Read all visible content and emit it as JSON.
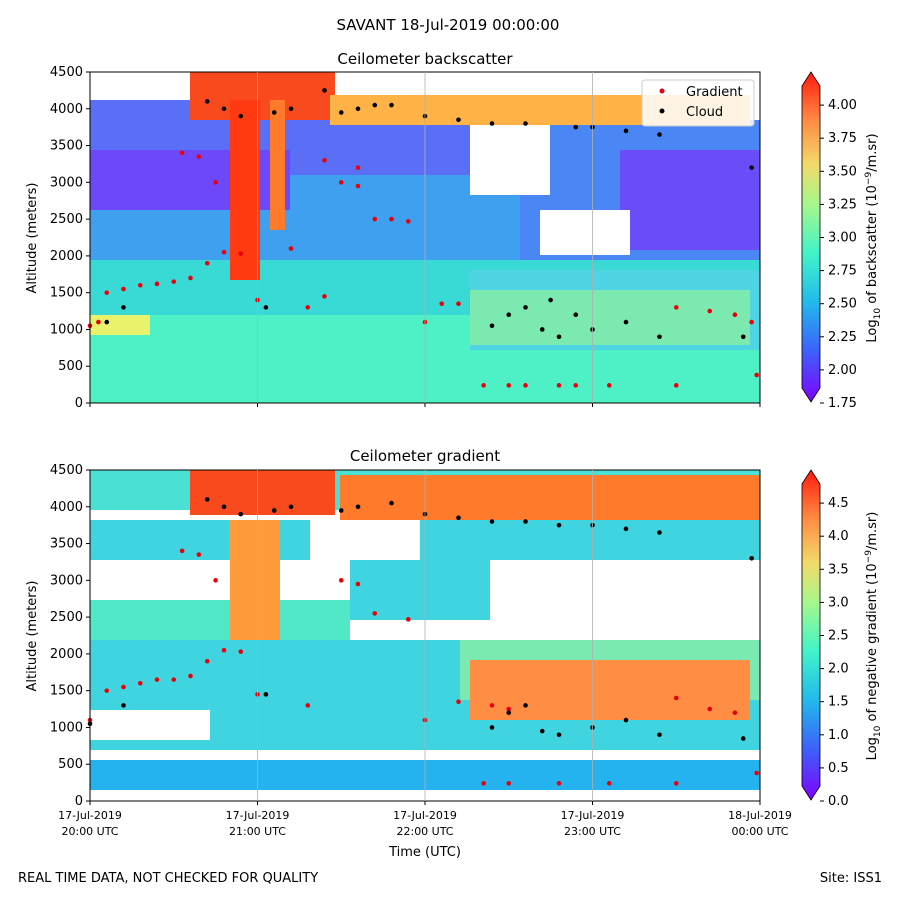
{
  "suptitle": "SAVANT 18-Jul-2019 00:00:00",
  "footer_left": "REAL TIME DATA, NOT CHECKED FOR QUALITY",
  "footer_right": "Site: ISS1",
  "chart_data": [
    {
      "type": "heatmap",
      "title": "Ceilometer backscatter",
      "ylabel": "Altitude (meters)",
      "xlabel": "",
      "xlim": [
        "17-Jul-2019 20:00 UTC",
        "18-Jul-2019 00:00 UTC"
      ],
      "ylim": [
        0,
        4500
      ],
      "yticks": [
        0,
        500,
        1000,
        1500,
        2000,
        2500,
        3000,
        3500,
        4000,
        4500
      ],
      "colorbar": {
        "label_main": "Log",
        "label_sub": "10",
        "label_rest": " of backscatter (10",
        "label_exp": "−9",
        "label_end": "/m.sr)",
        "ticks": [
          "1.75",
          "2.00",
          "2.25",
          "2.50",
          "2.75",
          "3.00",
          "3.25",
          "3.50",
          "3.75",
          "4.00"
        ],
        "range": [
          1.75,
          4.25
        ],
        "colormap": "rainbow"
      },
      "legend": {
        "placement": "top-right",
        "entries": [
          "Gradient",
          "Cloud"
        ]
      },
      "series": [
        {
          "name": "Gradient",
          "color": "#e8000b",
          "marker": "dot",
          "points": [
            [
              20.0,
              1050
            ],
            [
              20.05,
              1100
            ],
            [
              20.1,
              1500
            ],
            [
              20.2,
              1550
            ],
            [
              20.3,
              1600
            ],
            [
              20.4,
              1620
            ],
            [
              20.5,
              1650
            ],
            [
              20.6,
              1700
            ],
            [
              20.7,
              1900
            ],
            [
              20.8,
              2050
            ],
            [
              20.9,
              2030
            ],
            [
              20.55,
              3400
            ],
            [
              20.65,
              3350
            ],
            [
              20.75,
              3000
            ],
            [
              21.0,
              1400
            ],
            [
              21.2,
              2100
            ],
            [
              21.3,
              1300
            ],
            [
              21.4,
              1450
            ],
            [
              21.5,
              3000
            ],
            [
              21.6,
              2950
            ],
            [
              21.7,
              2500
            ],
            [
              21.8,
              2500
            ],
            [
              21.9,
              2470
            ],
            [
              21.4,
              3300
            ],
            [
              21.6,
              3200
            ],
            [
              22.0,
              1100
            ],
            [
              22.1,
              1350
            ],
            [
              22.2,
              1350
            ],
            [
              22.35,
              240
            ],
            [
              22.5,
              240
            ],
            [
              22.6,
              240
            ],
            [
              22.8,
              240
            ],
            [
              22.9,
              240
            ],
            [
              23.1,
              240
            ],
            [
              23.5,
              240
            ],
            [
              23.5,
              1300
            ],
            [
              23.7,
              1250
            ],
            [
              23.85,
              1200
            ],
            [
              23.95,
              1100
            ],
            [
              23.98,
              380
            ]
          ]
        },
        {
          "name": "Cloud",
          "color": "#000000",
          "marker": "dot",
          "points": [
            [
              20.1,
              1100
            ],
            [
              20.2,
              1300
            ],
            [
              20.7,
              4100
            ],
            [
              20.8,
              4000
            ],
            [
              20.9,
              3900
            ],
            [
              21.05,
              1300
            ],
            [
              21.1,
              3950
            ],
            [
              21.2,
              4000
            ],
            [
              21.4,
              4250
            ],
            [
              21.5,
              3950
            ],
            [
              21.6,
              4000
            ],
            [
              21.7,
              4050
            ],
            [
              21.8,
              4050
            ],
            [
              22.0,
              3900
            ],
            [
              22.2,
              3850
            ],
            [
              22.4,
              3800
            ],
            [
              22.6,
              3800
            ],
            [
              22.75,
              1400
            ],
            [
              22.9,
              3750
            ],
            [
              23.0,
              3750
            ],
            [
              23.2,
              3700
            ],
            [
              23.4,
              3650
            ],
            [
              22.4,
              1050
            ],
            [
              22.5,
              1200
            ],
            [
              22.6,
              1300
            ],
            [
              22.7,
              1000
            ],
            [
              22.8,
              900
            ],
            [
              22.9,
              1200
            ],
            [
              23.0,
              1000
            ],
            [
              23.2,
              1100
            ],
            [
              23.4,
              900
            ],
            [
              23.9,
              900
            ],
            [
              23.95,
              3200
            ]
          ]
        }
      ]
    },
    {
      "type": "heatmap",
      "title": "Ceilometer gradient",
      "ylabel": "Altitude (meters)",
      "xlabel": "Time (UTC)",
      "xlim": [
        "17-Jul-2019 20:00 UTC",
        "18-Jul-2019 00:00 UTC"
      ],
      "ylim": [
        0,
        4500
      ],
      "yticks": [
        0,
        500,
        1000,
        1500,
        2000,
        2500,
        3000,
        3500,
        4000,
        4500
      ],
      "xticks": [
        {
          "date": "17-Jul-2019",
          "time": "20:00 UTC"
        },
        {
          "date": "17-Jul-2019",
          "time": "21:00 UTC"
        },
        {
          "date": "17-Jul-2019",
          "time": "22:00 UTC"
        },
        {
          "date": "17-Jul-2019",
          "time": "23:00 UTC"
        },
        {
          "date": "18-Jul-2019",
          "time": "00:00 UTC"
        }
      ],
      "colorbar": {
        "label_main": "Log",
        "label_sub": "10",
        "label_rest": " of negative gradient (10",
        "label_exp": "−9",
        "label_end": "/m.sr)",
        "ticks": [
          "0.0",
          "0.5",
          "1.0",
          "1.5",
          "2.0",
          "2.5",
          "3.0",
          "3.5",
          "4.0",
          "4.5"
        ],
        "range": [
          0,
          5
        ],
        "colormap": "rainbow"
      },
      "series": [
        {
          "name": "Gradient",
          "color": "#e8000b",
          "marker": "dot",
          "points": [
            [
              20.0,
              1100
            ],
            [
              20.1,
              1500
            ],
            [
              20.2,
              1550
            ],
            [
              20.3,
              1600
            ],
            [
              20.4,
              1650
            ],
            [
              20.5,
              1650
            ],
            [
              20.6,
              1700
            ],
            [
              20.7,
              1900
            ],
            [
              20.8,
              2050
            ],
            [
              20.9,
              2030
            ],
            [
              20.55,
              3400
            ],
            [
              20.65,
              3350
            ],
            [
              20.75,
              3000
            ],
            [
              21.0,
              1450
            ],
            [
              21.3,
              1300
            ],
            [
              21.5,
              3000
            ],
            [
              21.6,
              2950
            ],
            [
              21.7,
              2550
            ],
            [
              21.9,
              2470
            ],
            [
              22.0,
              1100
            ],
            [
              22.2,
              1350
            ],
            [
              22.4,
              1300
            ],
            [
              22.5,
              1250
            ],
            [
              22.35,
              240
            ],
            [
              22.5,
              240
            ],
            [
              22.8,
              240
            ],
            [
              23.1,
              240
            ],
            [
              23.5,
              240
            ],
            [
              23.5,
              1400
            ],
            [
              23.7,
              1250
            ],
            [
              23.85,
              1200
            ],
            [
              23.98,
              380
            ]
          ]
        },
        {
          "name": "Cloud",
          "color": "#000000",
          "marker": "dot",
          "points": [
            [
              20.0,
              1050
            ],
            [
              20.2,
              1300
            ],
            [
              20.7,
              4100
            ],
            [
              20.8,
              4000
            ],
            [
              20.9,
              3900
            ],
            [
              21.05,
              1450
            ],
            [
              21.1,
              3950
            ],
            [
              21.2,
              4000
            ],
            [
              21.5,
              3950
            ],
            [
              21.6,
              4000
            ],
            [
              21.8,
              4050
            ],
            [
              22.0,
              3900
            ],
            [
              22.2,
              3850
            ],
            [
              22.4,
              3800
            ],
            [
              22.6,
              3800
            ],
            [
              22.8,
              3750
            ],
            [
              23.0,
              3750
            ],
            [
              23.2,
              3700
            ],
            [
              23.4,
              3650
            ],
            [
              22.4,
              1000
            ],
            [
              22.5,
              1200
            ],
            [
              22.6,
              1300
            ],
            [
              22.7,
              950
            ],
            [
              22.8,
              900
            ],
            [
              23.0,
              1000
            ],
            [
              23.2,
              1100
            ],
            [
              23.4,
              900
            ],
            [
              23.9,
              850
            ],
            [
              23.95,
              3300
            ]
          ]
        }
      ]
    }
  ]
}
